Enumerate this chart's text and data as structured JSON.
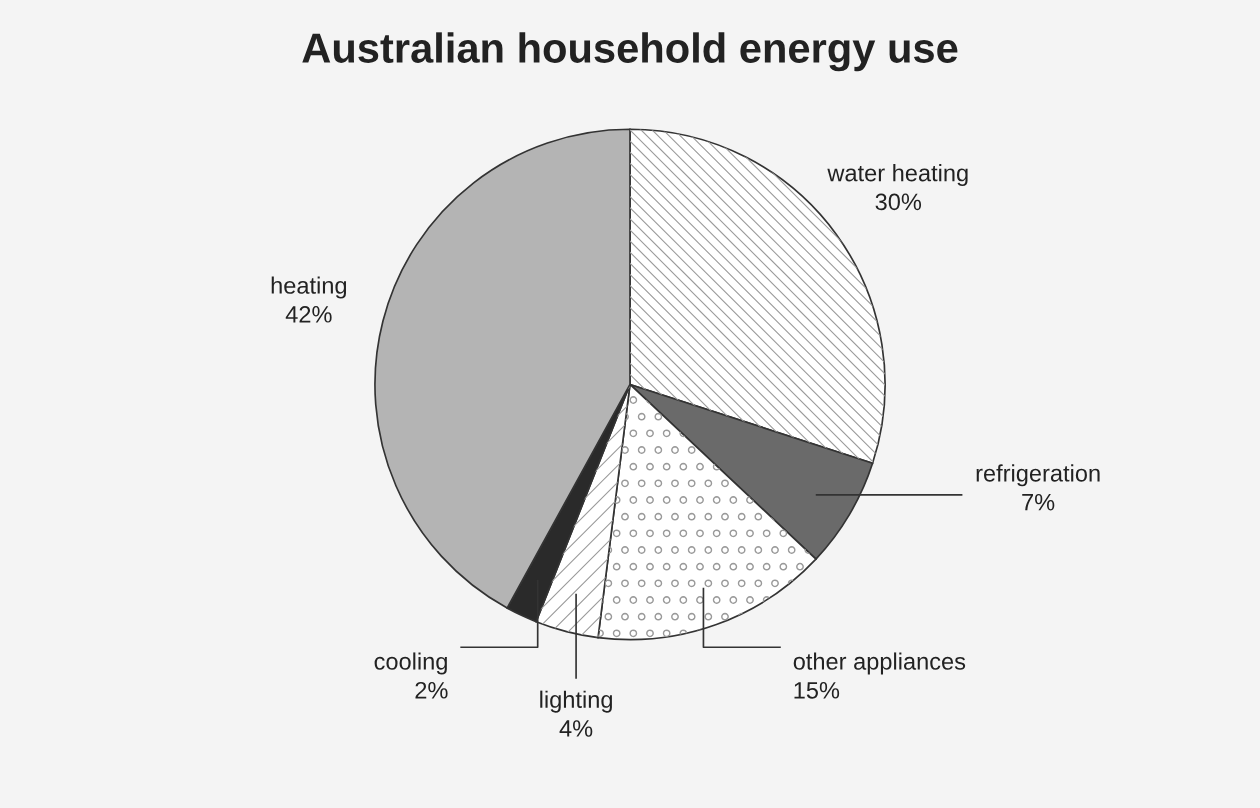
{
  "chart_data": {
    "type": "pie",
    "title": "Australian household energy use",
    "categories": [
      "water heating",
      "refrigeration",
      "other appliances",
      "lighting",
      "cooling",
      "heating"
    ],
    "values": [
      30,
      7,
      15,
      4,
      2,
      42
    ],
    "value_labels": [
      "30%",
      "7%",
      "15%",
      "4%",
      "2%",
      "42%"
    ],
    "colors": [
      "#ffffff",
      "#6a6a6a",
      "#ffffff",
      "#ffffff",
      "#2a2a2a",
      "#b4b4b4"
    ],
    "legend": false
  }
}
